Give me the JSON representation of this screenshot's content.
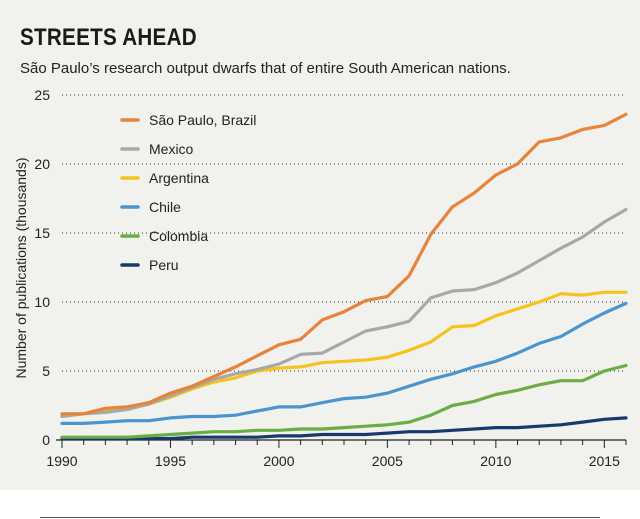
{
  "title": "STREETS AHEAD",
  "subtitle": "São Paulo’s research output dwarfs that of entire South American nations.",
  "chart_data": {
    "type": "line",
    "ylabel": "Number of publications (thousands)",
    "xlabel": "",
    "xlim": [
      1990,
      2016
    ],
    "ylim": [
      0,
      25
    ],
    "yticks": [
      0,
      5,
      10,
      15,
      20,
      25
    ],
    "xticks": [
      1990,
      1995,
      2000,
      2005,
      2010,
      2015
    ],
    "grid": "horizontal dotted",
    "legend_position": "top-left",
    "x": [
      1990,
      1991,
      1992,
      1993,
      1994,
      1995,
      1996,
      1997,
      1998,
      1999,
      2000,
      2001,
      2002,
      2003,
      2004,
      2005,
      2006,
      2007,
      2008,
      2009,
      2010,
      2011,
      2012,
      2013,
      2014,
      2015,
      2016
    ],
    "series": [
      {
        "name": "São Paulo, Brazil",
        "color": "#e8833a",
        "values": [
          1.9,
          1.9,
          2.3,
          2.4,
          2.7,
          3.4,
          3.9,
          4.6,
          5.3,
          6.1,
          6.9,
          7.3,
          8.7,
          9.3,
          10.1,
          10.4,
          11.9,
          14.9,
          16.9,
          17.9,
          19.2,
          20.0,
          21.6,
          21.9,
          22.5,
          22.8,
          23.6
        ]
      },
      {
        "name": "Mexico",
        "color": "#a8a8a8",
        "values": [
          1.7,
          1.9,
          2.0,
          2.2,
          2.6,
          3.2,
          3.8,
          4.4,
          4.8,
          5.1,
          5.5,
          6.2,
          6.3,
          7.1,
          7.9,
          8.2,
          8.6,
          10.3,
          10.8,
          10.9,
          11.4,
          12.1,
          13.0,
          13.9,
          14.7,
          15.8,
          16.7
        ]
      },
      {
        "name": "Argentina",
        "color": "#f5c31c",
        "values": [
          1.8,
          1.9,
          2.1,
          2.3,
          2.6,
          3.1,
          3.7,
          4.2,
          4.5,
          5.0,
          5.2,
          5.3,
          5.6,
          5.7,
          5.8,
          6.0,
          6.5,
          7.1,
          8.2,
          8.3,
          9.0,
          9.5,
          10.0,
          10.6,
          10.5,
          10.7,
          10.7
        ]
      },
      {
        "name": "Chile",
        "color": "#4a95d0",
        "values": [
          1.2,
          1.2,
          1.3,
          1.4,
          1.4,
          1.6,
          1.7,
          1.7,
          1.8,
          2.1,
          2.4,
          2.4,
          2.7,
          3.0,
          3.1,
          3.4,
          3.9,
          4.4,
          4.8,
          5.3,
          5.7,
          6.3,
          7.0,
          7.5,
          8.4,
          9.2,
          9.9
        ]
      },
      {
        "name": "Colombia",
        "color": "#6aad45",
        "values": [
          0.2,
          0.2,
          0.2,
          0.2,
          0.3,
          0.4,
          0.5,
          0.6,
          0.6,
          0.7,
          0.7,
          0.8,
          0.8,
          0.9,
          1.0,
          1.1,
          1.3,
          1.8,
          2.5,
          2.8,
          3.3,
          3.6,
          4.0,
          4.3,
          4.3,
          5.0,
          5.4
        ]
      },
      {
        "name": "Peru",
        "color": "#163a6b",
        "values": [
          0.1,
          0.1,
          0.1,
          0.1,
          0.1,
          0.1,
          0.2,
          0.2,
          0.2,
          0.2,
          0.3,
          0.3,
          0.4,
          0.4,
          0.4,
          0.5,
          0.6,
          0.6,
          0.7,
          0.8,
          0.9,
          0.9,
          1.0,
          1.1,
          1.3,
          1.5,
          1.6
        ]
      }
    ]
  }
}
